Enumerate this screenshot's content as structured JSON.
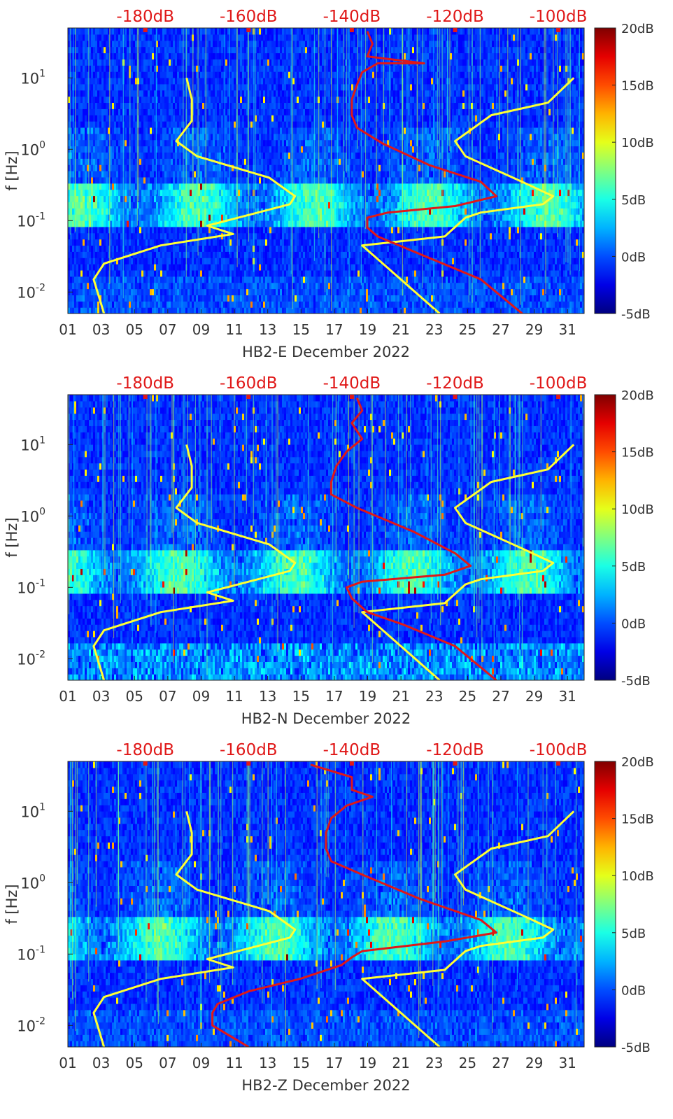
{
  "chart_data": [
    {
      "type": "heatmap",
      "title": "HB2-E December 2022",
      "xlabel": "HB2-E December 2022",
      "ylabel": "f [Hz]",
      "x_ticks": [
        "01",
        "03",
        "05",
        "07",
        "09",
        "11",
        "13",
        "15",
        "17",
        "19",
        "21",
        "23",
        "25",
        "27",
        "29",
        "31"
      ],
      "y_ticks": [
        "10^-2",
        "10^-1",
        "10^0",
        "10^1"
      ],
      "top_axis_ticks": [
        "-180dB",
        "-160dB",
        "-140dB",
        "-120dB",
        "-100dB"
      ],
      "colorbar_ticks": [
        "20dB",
        "15dB",
        "10dB",
        "5dB",
        "0dB",
        "-5dB"
      ],
      "colorbar_range_db": [
        -5,
        20
      ],
      "xlim_day": [
        1,
        32
      ],
      "ylim_hz": [
        0.005,
        50
      ],
      "top_axis_range_db": [
        -195,
        -95
      ],
      "series": [
        {
          "name": "reference model low",
          "color": "#ffff33",
          "points": [
            [
              -188,
              0.005
            ],
            [
              -190,
              0.015
            ],
            [
              -188,
              0.025
            ],
            [
              -177,
              0.045
            ],
            [
              -163,
              0.065
            ],
            [
              -168,
              0.085
            ],
            [
              -162,
              0.11
            ],
            [
              -152,
              0.17
            ],
            [
              -151,
              0.22
            ],
            [
              -156,
              0.4
            ],
            [
              -170,
              0.8
            ],
            [
              -174,
              1.3
            ],
            [
              -171,
              2.5
            ],
            [
              -171,
              5
            ],
            [
              -172,
              10
            ]
          ]
        },
        {
          "name": "reference model high",
          "color": "#ffff33",
          "points": [
            [
              -123,
              0.005
            ],
            [
              -138,
              0.045
            ],
            [
              -122,
              0.06
            ],
            [
              -121,
              0.07
            ],
            [
              -118,
              0.11
            ],
            [
              -115,
              0.13
            ],
            [
              -103,
              0.17
            ],
            [
              -101,
              0.22
            ],
            [
              -107,
              0.35
            ],
            [
              -118,
              0.8
            ],
            [
              -120,
              1.3
            ],
            [
              -113,
              3
            ],
            [
              -102,
              4.5
            ],
            [
              -97,
              10
            ]
          ]
        },
        {
          "name": "noise PSD",
          "color": "#e01818",
          "points": [
            [
              -107,
              0.005
            ],
            [
              -115,
              0.015
            ],
            [
              -125,
              0.03
            ],
            [
              -135,
              0.06
            ],
            [
              -137,
              0.08
            ],
            [
              -137,
              0.11
            ],
            [
              -133,
              0.13
            ],
            [
              -120,
              0.16
            ],
            [
              -112,
              0.22
            ],
            [
              -115,
              0.35
            ],
            [
              -125,
              0.6
            ],
            [
              -134,
              1.2
            ],
            [
              -139,
              2
            ],
            [
              -140,
              3
            ],
            [
              -140,
              5
            ],
            [
              -139,
              8
            ],
            [
              -138,
              12
            ],
            [
              -135,
              16
            ],
            [
              -126,
              16
            ],
            [
              -137,
              20
            ],
            [
              -136,
              30
            ],
            [
              -137,
              45
            ]
          ]
        }
      ]
    },
    {
      "type": "heatmap",
      "title": "HB2-N December 2022",
      "xlabel": "HB2-N December 2022",
      "ylabel": "f [Hz]",
      "x_ticks": [
        "01",
        "03",
        "05",
        "07",
        "09",
        "11",
        "13",
        "15",
        "17",
        "19",
        "21",
        "23",
        "25",
        "27",
        "29",
        "31"
      ],
      "y_ticks": [
        "10^-2",
        "10^-1",
        "10^0",
        "10^1"
      ],
      "top_axis_ticks": [
        "-180dB",
        "-160dB",
        "-140dB",
        "-120dB",
        "-100dB"
      ],
      "colorbar_ticks": [
        "20dB",
        "15dB",
        "10dB",
        "5dB",
        "0dB",
        "-5dB"
      ],
      "colorbar_range_db": [
        -5,
        20
      ],
      "xlim_day": [
        1,
        32
      ],
      "ylim_hz": [
        0.005,
        50
      ],
      "top_axis_range_db": [
        -195,
        -95
      ],
      "series": [
        {
          "name": "reference model low",
          "color": "#ffff33",
          "points": [
            [
              -188,
              0.005
            ],
            [
              -190,
              0.015
            ],
            [
              -188,
              0.025
            ],
            [
              -177,
              0.045
            ],
            [
              -163,
              0.065
            ],
            [
              -168,
              0.085
            ],
            [
              -162,
              0.11
            ],
            [
              -152,
              0.17
            ],
            [
              -151,
              0.22
            ],
            [
              -156,
              0.4
            ],
            [
              -170,
              0.8
            ],
            [
              -174,
              1.3
            ],
            [
              -171,
              2.5
            ],
            [
              -171,
              5
            ],
            [
              -172,
              10
            ]
          ]
        },
        {
          "name": "reference model high",
          "color": "#ffff33",
          "points": [
            [
              -123,
              0.005
            ],
            [
              -138,
              0.045
            ],
            [
              -122,
              0.06
            ],
            [
              -121,
              0.07
            ],
            [
              -118,
              0.11
            ],
            [
              -115,
              0.13
            ],
            [
              -103,
              0.17
            ],
            [
              -101,
              0.22
            ],
            [
              -107,
              0.35
            ],
            [
              -118,
              0.8
            ],
            [
              -120,
              1.3
            ],
            [
              -113,
              3
            ],
            [
              -102,
              4.5
            ],
            [
              -97,
              10
            ]
          ]
        },
        {
          "name": "noise PSD",
          "color": "#e01818",
          "points": [
            [
              -112,
              0.005
            ],
            [
              -120,
              0.015
            ],
            [
              -130,
              0.03
            ],
            [
              -137,
              0.045
            ],
            [
              -140,
              0.07
            ],
            [
              -141,
              0.1
            ],
            [
              -138,
              0.12
            ],
            [
              -122,
              0.15
            ],
            [
              -117,
              0.2
            ],
            [
              -120,
              0.3
            ],
            [
              -128,
              0.6
            ],
            [
              -139,
              1.3
            ],
            [
              -144,
              2
            ],
            [
              -144,
              3
            ],
            [
              -143,
              5
            ],
            [
              -141,
              8
            ],
            [
              -138,
              12
            ],
            [
              -140,
              20
            ],
            [
              -138,
              30
            ],
            [
              -139,
              45
            ]
          ]
        }
      ]
    },
    {
      "type": "heatmap",
      "title": "HB2-Z December 2022",
      "xlabel": "HB2-Z December 2022",
      "ylabel": "f [Hz]",
      "x_ticks": [
        "01",
        "03",
        "05",
        "07",
        "09",
        "11",
        "13",
        "15",
        "17",
        "19",
        "21",
        "23",
        "25",
        "27",
        "29",
        "31"
      ],
      "y_ticks": [
        "10^-2",
        "10^-1",
        "10^0",
        "10^1"
      ],
      "top_axis_ticks": [
        "-180dB",
        "-160dB",
        "-140dB",
        "-120dB",
        "-100dB"
      ],
      "colorbar_ticks": [
        "20dB",
        "15dB",
        "10dB",
        "5dB",
        "0dB",
        "-5dB"
      ],
      "colorbar_range_db": [
        -5,
        20
      ],
      "xlim_day": [
        1,
        32
      ],
      "ylim_hz": [
        0.005,
        50
      ],
      "top_axis_range_db": [
        -195,
        -95
      ],
      "series": [
        {
          "name": "reference model low",
          "color": "#ffff33",
          "points": [
            [
              -188,
              0.005
            ],
            [
              -190,
              0.015
            ],
            [
              -188,
              0.025
            ],
            [
              -177,
              0.045
            ],
            [
              -163,
              0.065
            ],
            [
              -168,
              0.085
            ],
            [
              -162,
              0.11
            ],
            [
              -152,
              0.17
            ],
            [
              -151,
              0.22
            ],
            [
              -156,
              0.4
            ],
            [
              -170,
              0.8
            ],
            [
              -174,
              1.3
            ],
            [
              -171,
              2.5
            ],
            [
              -171,
              5
            ],
            [
              -172,
              10
            ]
          ]
        },
        {
          "name": "reference model high",
          "color": "#ffff33",
          "points": [
            [
              -123,
              0.005
            ],
            [
              -138,
              0.045
            ],
            [
              -122,
              0.06
            ],
            [
              -121,
              0.07
            ],
            [
              -118,
              0.11
            ],
            [
              -115,
              0.13
            ],
            [
              -103,
              0.17
            ],
            [
              -101,
              0.22
            ],
            [
              -107,
              0.35
            ],
            [
              -118,
              0.8
            ],
            [
              -120,
              1.3
            ],
            [
              -113,
              3
            ],
            [
              -102,
              4.5
            ],
            [
              -97,
              10
            ]
          ]
        },
        {
          "name": "noise PSD",
          "color": "#e01818",
          "points": [
            [
              -160,
              0.005
            ],
            [
              -167,
              0.01
            ],
            [
              -167,
              0.015
            ],
            [
              -166,
              0.02
            ],
            [
              -160,
              0.03
            ],
            [
              -150,
              0.045
            ],
            [
              -142,
              0.07
            ],
            [
              -140,
              0.09
            ],
            [
              -138,
              0.11
            ],
            [
              -122,
              0.15
            ],
            [
              -112,
              0.2
            ],
            [
              -115,
              0.3
            ],
            [
              -127,
              0.6
            ],
            [
              -138,
              1.3
            ],
            [
              -144,
              2
            ],
            [
              -145,
              3
            ],
            [
              -145,
              5
            ],
            [
              -144,
              8
            ],
            [
              -141,
              12
            ],
            [
              -136,
              16
            ],
            [
              -140,
              20
            ],
            [
              -140,
              30
            ],
            [
              -148,
              45
            ]
          ]
        }
      ]
    }
  ]
}
